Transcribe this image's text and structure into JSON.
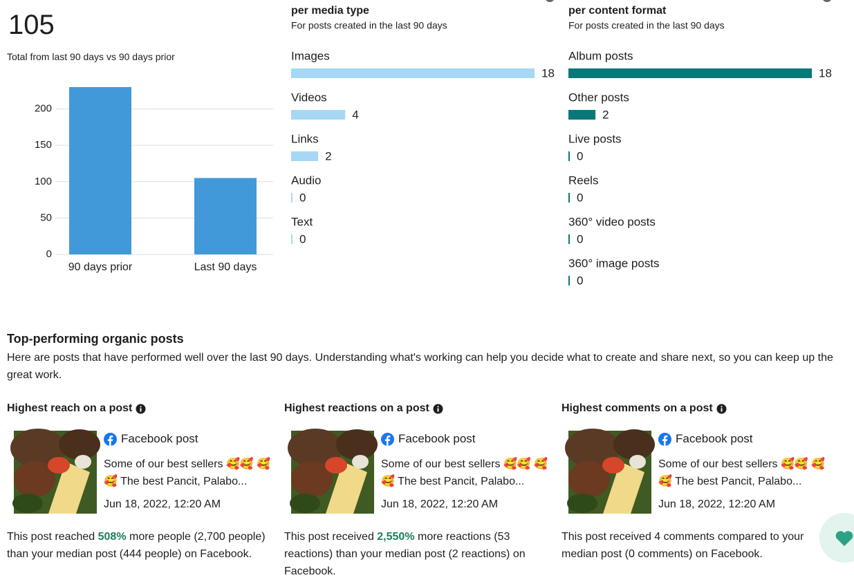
{
  "summary": {
    "value": "105",
    "caption": "Total from last 90 days vs 90 days prior"
  },
  "chart_data": [
    {
      "type": "bar",
      "categories": [
        "90 days prior",
        "Last 90 days"
      ],
      "values": [
        230,
        105
      ],
      "color": "#4299d9",
      "ylim": [
        0,
        230
      ],
      "yticks": [
        0,
        50,
        100,
        150,
        200
      ],
      "grid": true
    },
    {
      "type": "hbar",
      "title": "per media type",
      "subtitle": "For posts created in the last 90 days",
      "categories": [
        "Images",
        "Videos",
        "Links",
        "Audio",
        "Text"
      ],
      "values": [
        18,
        4,
        2,
        0,
        0
      ],
      "color": "#a6d8f5",
      "xlim": [
        0,
        18
      ]
    },
    {
      "type": "hbar",
      "title": "per content format",
      "subtitle": "For posts created in the last 90 days",
      "categories": [
        "Album posts",
        "Other posts",
        "Live posts",
        "Reels",
        "360° video posts",
        "360° image posts"
      ],
      "values": [
        18,
        2,
        0,
        0,
        0,
        0
      ],
      "color": "#087878",
      "xlim": [
        0,
        18
      ]
    }
  ],
  "top_posts": {
    "title": "Top-performing organic posts",
    "description": "Here are posts that have performed well over the last 90 days. Understanding what's working can help you decide what to create and share next, so you can keep up the great work.",
    "cards": [
      {
        "heading": "Highest reach on a post",
        "post_type": "Facebook post",
        "text": "Some of our best sellers 🥰🥰 🥰🥰 The best Pancit, Palabo...",
        "date": "Jun 18, 2022, 12:20 AM",
        "summary": [
          {
            "text": "This post reached "
          },
          {
            "text": "508%",
            "highlight": true
          },
          {
            "text": " more people (2,700 people) than your median post (444 people) on Facebook."
          }
        ]
      },
      {
        "heading": "Highest reactions on a post",
        "post_type": "Facebook post",
        "text": "Some of our best sellers 🥰🥰 🥰🥰 The best Pancit, Palabo...",
        "date": "Jun 18, 2022, 12:20 AM",
        "summary": [
          {
            "text": "This post received "
          },
          {
            "text": "2,550%",
            "highlight": true
          },
          {
            "text": " more reactions (53 reactions) than your median post (2 reactions) on Facebook."
          }
        ]
      },
      {
        "heading": "Highest comments on a post",
        "post_type": "Facebook post",
        "text": "Some of our best sellers 🥰🥰 🥰🥰 The best Pancit, Palabo...",
        "date": "Jun 18, 2022, 12:20 AM",
        "summary": [
          {
            "text": "This post received 4 comments compared to your median post (0 comments) on Facebook."
          }
        ]
      }
    ]
  }
}
